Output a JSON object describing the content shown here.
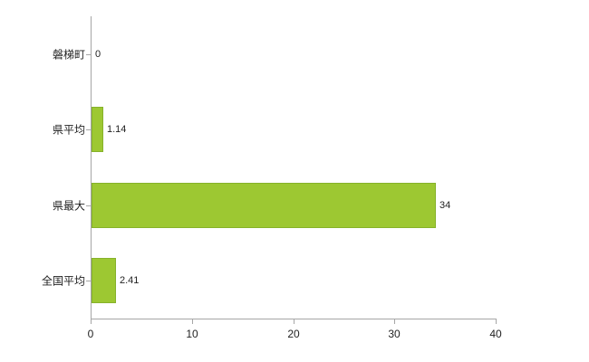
{
  "chart_data": {
    "type": "bar",
    "orientation": "horizontal",
    "title": "",
    "categories": [
      "磐梯町",
      "県平均",
      "県最大",
      "全国平均"
    ],
    "values": [
      0,
      1.14,
      34,
      2.41
    ],
    "value_labels": [
      "0",
      "1.14",
      "34",
      "2.41"
    ],
    "x_ticks": [
      0,
      10,
      20,
      30,
      40
    ],
    "xlim": [
      0,
      40
    ],
    "grid": false,
    "legend": false,
    "colors": {
      "bar_fill": "#9dc832",
      "bar_border": "#86b22a",
      "axis_line": "#a6a6a6",
      "text": "#222222",
      "background": "#ffffff"
    }
  }
}
